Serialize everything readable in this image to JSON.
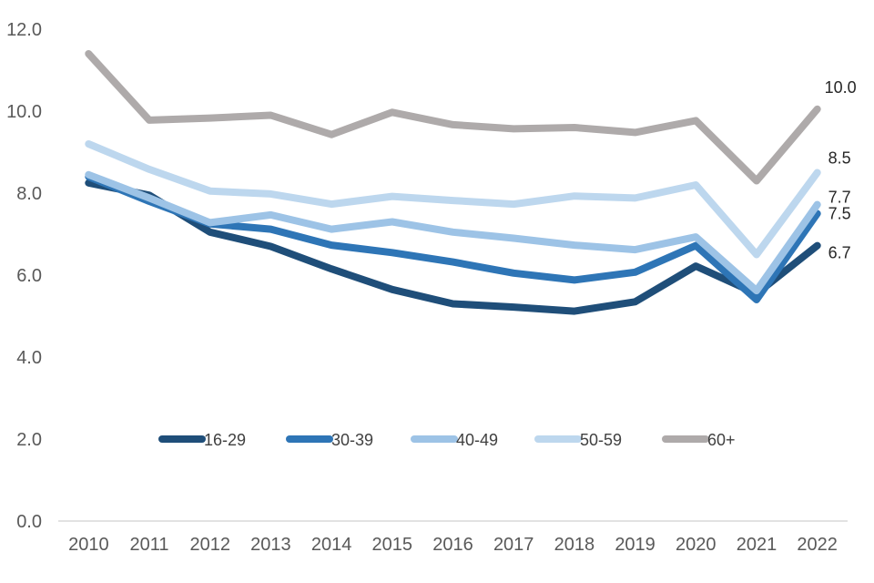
{
  "chart_data": {
    "type": "line",
    "title": "",
    "xlabel": "",
    "ylabel": "",
    "categories": [
      "2010",
      "2011",
      "2012",
      "2013",
      "2014",
      "2015",
      "2016",
      "2017",
      "2018",
      "2019",
      "2020",
      "2021",
      "2022"
    ],
    "ylim": [
      0,
      12
    ],
    "yticks": [
      0,
      2,
      4,
      6,
      8,
      10,
      12
    ],
    "ytick_labels": [
      "0.0",
      "2.0",
      "4.0",
      "6.0",
      "8.0",
      "10.0",
      "12.0"
    ],
    "grid": false,
    "legend_position": "inside-lower-center",
    "series": [
      {
        "name": "16-29",
        "color": "#1f4e79",
        "values": [
          8.25,
          7.95,
          7.05,
          6.7,
          6.15,
          5.65,
          5.3,
          5.22,
          5.12,
          5.35,
          6.22,
          5.55,
          6.72
        ],
        "end_label": "6.7"
      },
      {
        "name": "30-39",
        "color": "#2e75b6",
        "values": [
          8.4,
          7.8,
          7.25,
          7.12,
          6.73,
          6.55,
          6.32,
          6.05,
          5.88,
          6.07,
          6.72,
          5.4,
          7.5
        ],
        "end_label": "7.5"
      },
      {
        "name": "40-49",
        "color": "#9dc3e6",
        "values": [
          8.45,
          7.88,
          7.28,
          7.47,
          7.12,
          7.3,
          7.05,
          6.9,
          6.73,
          6.62,
          6.93,
          5.62,
          7.72
        ],
        "end_label": "7.7"
      },
      {
        "name": "50-59",
        "color": "#bdd7ee",
        "values": [
          9.2,
          8.58,
          8.05,
          7.98,
          7.73,
          7.92,
          7.82,
          7.73,
          7.93,
          7.88,
          8.2,
          6.5,
          8.5
        ],
        "end_label": "8.5"
      },
      {
        "name": "60+",
        "color": "#aeaaaa",
        "values": [
          11.4,
          9.78,
          9.83,
          9.9,
          9.43,
          9.97,
          9.67,
          9.57,
          9.6,
          9.48,
          9.77,
          8.3,
          10.05
        ],
        "end_label": "10.0"
      }
    ]
  }
}
